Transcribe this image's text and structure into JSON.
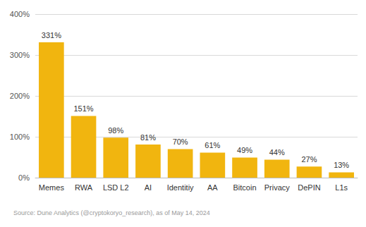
{
  "chart_data": {
    "type": "bar",
    "categories": [
      "Memes",
      "RWA",
      "LSD L2",
      "AI",
      "Identitiy",
      "AA",
      "Bitcoin",
      "Privacy",
      "DePIN",
      "L1s"
    ],
    "values": [
      331,
      151,
      98,
      81,
      70,
      61,
      49,
      44,
      27,
      13
    ],
    "value_labels": [
      "331%",
      "151%",
      "98%",
      "81%",
      "70%",
      "61%",
      "49%",
      "44%",
      "27%",
      "13%"
    ],
    "color": "#f1b50f",
    "ylim": [
      0,
      400
    ],
    "yticks": [
      {
        "value": 0,
        "label": "0%"
      },
      {
        "value": 100,
        "label": "100%"
      },
      {
        "value": 200,
        "label": "200%"
      },
      {
        "value": 300,
        "label": "300%"
      },
      {
        "value": 400,
        "label": "400%"
      }
    ],
    "grid": true,
    "data_labels": true,
    "source": "Source: Dune Analytics (@cryptokoryo_research), as of May 14, 2024"
  }
}
